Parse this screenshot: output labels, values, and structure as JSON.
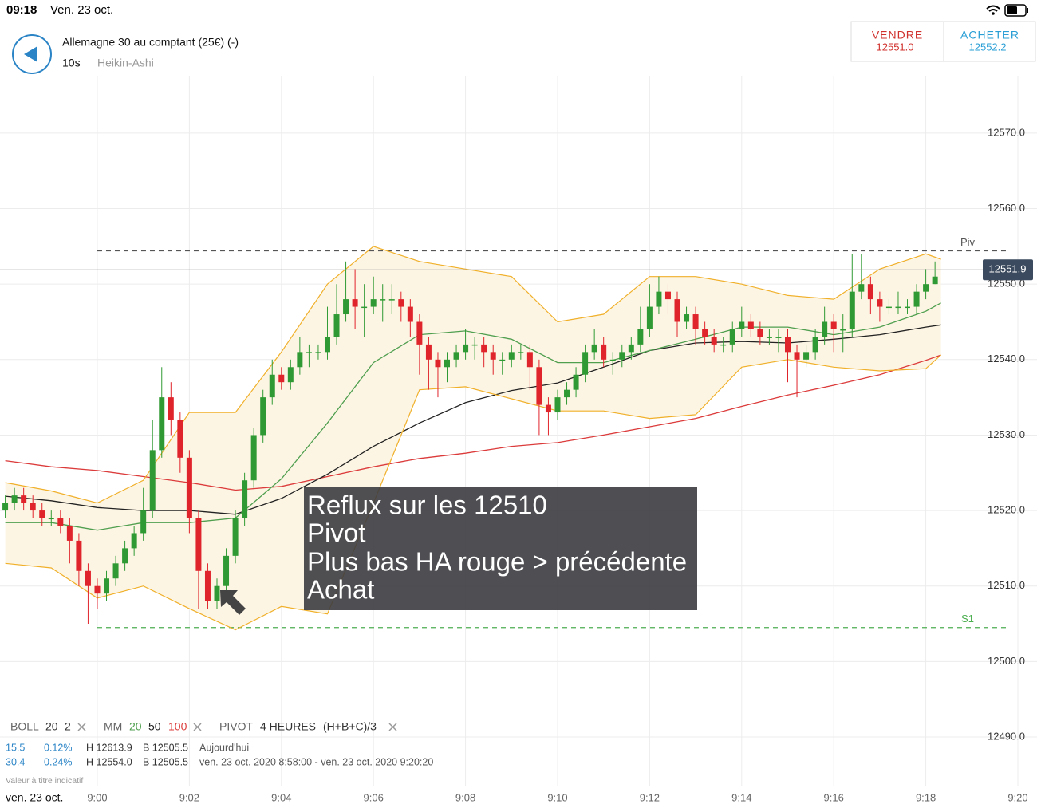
{
  "status_bar": {
    "time": "09:18",
    "date": "Ven. 23 oct."
  },
  "header": {
    "instrument": "Allemagne 30 au comptant (25€) (-)",
    "interval": "10s",
    "chart_style": "Heikin-Ashi"
  },
  "quote": {
    "sell_label": "VENDRE",
    "sell_price": "12551.0",
    "buy_label": "ACHETER",
    "buy_price": "12552.2"
  },
  "chart_data": {
    "type": "candlestick",
    "xlim": [
      -2.114,
      20.416
    ],
    "xticks": [
      {
        "value": 0,
        "label": "9:00"
      },
      {
        "value": 2,
        "label": "9:02"
      },
      {
        "value": 4,
        "label": "9:04"
      },
      {
        "value": 6,
        "label": "9:06"
      },
      {
        "value": 8,
        "label": "9:08"
      },
      {
        "value": 10,
        "label": "9:10"
      },
      {
        "value": 12,
        "label": "9:12"
      },
      {
        "value": 14,
        "label": "9:14"
      },
      {
        "value": 16,
        "label": "9:16"
      },
      {
        "value": 18,
        "label": "9:18"
      },
      {
        "value": 20,
        "label": "9:20"
      }
    ],
    "ylim": [
      12483.55,
      12577.6
    ],
    "yticks": [
      {
        "value": 12490,
        "label": "12490.0"
      },
      {
        "value": 12500,
        "label": "12500.0"
      },
      {
        "value": 12510,
        "label": "12510.0"
      },
      {
        "value": 12520,
        "label": "12520.0"
      },
      {
        "value": 12530,
        "label": "12530.0"
      },
      {
        "value": 12540,
        "label": "12540.0"
      },
      {
        "value": 12550,
        "label": "12550.0"
      },
      {
        "value": 12560,
        "label": "12560.0"
      },
      {
        "value": 12570,
        "label": "12570.0"
      }
    ],
    "grid": true,
    "up_color": "#2f9a33",
    "down_color": "#e0242b",
    "x": [
      -2,
      -1.8,
      -1.6,
      -1.4,
      -1.2,
      -1,
      -0.8,
      -0.6,
      -0.4,
      -0.2,
      0,
      0.2,
      0.4,
      0.6,
      0.8,
      1,
      1.2,
      1.4,
      1.6,
      1.8,
      2,
      2.2,
      2.4,
      2.6,
      2.8,
      3,
      3.2,
      3.4,
      3.6,
      3.8,
      4,
      4.2,
      4.4,
      4.6,
      4.8,
      5,
      5.2,
      5.4,
      5.6,
      5.8,
      6,
      6.2,
      6.4,
      6.6,
      6.8,
      7,
      7.2,
      7.4,
      7.6,
      7.8,
      8,
      8.2,
      8.4,
      8.6,
      8.8,
      9,
      9.2,
      9.4,
      9.6,
      9.8,
      10,
      10.2,
      10.4,
      10.6,
      10.8,
      11,
      11.2,
      11.4,
      11.6,
      11.8,
      12,
      12.2,
      12.4,
      12.6,
      12.8,
      13,
      13.2,
      13.4,
      13.6,
      13.8,
      14,
      14.2,
      14.4,
      14.6,
      14.8,
      15,
      15.2,
      15.4,
      15.6,
      15.8,
      16,
      16.2,
      16.4,
      16.6,
      16.8,
      17,
      17.2,
      17.4,
      17.6,
      17.8,
      18,
      18.2
    ],
    "open": [
      12520,
      12521,
      12522,
      12521,
      12520,
      12519,
      12519,
      12518,
      12516,
      12512,
      12510,
      12509,
      12511,
      12513,
      12515,
      12517,
      12520,
      12528,
      12535,
      12532,
      12527,
      12519,
      12512,
      12508,
      12510,
      12514,
      12519,
      12524,
      12530,
      12535,
      12538,
      12537,
      12539,
      12541,
      12541,
      12541,
      12543,
      12546,
      12548,
      12547,
      12547,
      12548,
      12548,
      12548,
      12547,
      12545,
      12542,
      12540,
      12539,
      12540,
      12541,
      12542,
      12542,
      12541,
      12540,
      12540,
      12541,
      12541,
      12539,
      12534,
      12533,
      12535,
      12536,
      12538,
      12541,
      12542,
      12540,
      12540,
      12541,
      12542,
      12544,
      12547,
      12549,
      12548,
      12545,
      12546,
      12544,
      12543,
      12542,
      12542,
      12544,
      12545,
      12544,
      12543,
      12543,
      12543,
      12541,
      12540,
      12541,
      12543,
      12545,
      12544,
      12544,
      12549,
      12550,
      12548,
      12547,
      12547,
      12547,
      12547,
      12549,
      12550
    ],
    "high": [
      12522,
      12523,
      12523,
      12522,
      12521,
      12520,
      12520,
      12519,
      12517,
      12513,
      12511,
      12512,
      12514,
      12516,
      12518,
      12523,
      12532,
      12539,
      12537,
      12533,
      12528,
      12520,
      12513,
      12511,
      12515,
      12520,
      12525,
      12531,
      12536,
      12540,
      12539,
      12540,
      12543,
      12542,
      12542,
      12547,
      12550,
      12553,
      12552,
      12550,
      12551,
      12550,
      12550,
      12549,
      12548,
      12546,
      12543,
      12541,
      12541,
      12542,
      12544,
      12543,
      12543,
      12542,
      12541,
      12542,
      12542,
      12542,
      12540,
      12535,
      12536,
      12537,
      12539,
      12542,
      12544,
      12543,
      12541,
      12542,
      12543,
      12547,
      12550,
      12551,
      12550,
      12549,
      12547,
      12547,
      12545,
      12544,
      12543,
      12545,
      12547,
      12546,
      12545,
      12544,
      12544,
      12544,
      12542,
      12542,
      12544,
      12547,
      12546,
      12546,
      12554,
      12554,
      12551,
      12549,
      12548,
      12549,
      12548,
      12550,
      12552,
      12553
    ],
    "low": [
      12519,
      12520,
      12520,
      12519,
      12518,
      12518,
      12517,
      12513,
      12510,
      12505,
      12507,
      12508,
      12510,
      12512,
      12514,
      12516,
      12519,
      12527,
      12530,
      12525,
      12517,
      12507,
      12507,
      12507,
      12509,
      12513,
      12518,
      12523,
      12529,
      12534,
      12536,
      12536,
      12538,
      12539,
      12540,
      12540,
      12542,
      12545,
      12544,
      12543,
      12546,
      12545,
      12546,
      12545,
      12543,
      12538,
      12536,
      12535,
      12537,
      12539,
      12540,
      12540,
      12539,
      12538,
      12538,
      12539,
      12540,
      12536,
      12530,
      12530,
      12532,
      12534,
      12535,
      12537,
      12540,
      12539,
      12538,
      12539,
      12540,
      12541,
      12543,
      12546,
      12546,
      12543,
      12544,
      12542,
      12542,
      12541,
      12541,
      12541,
      12543,
      12543,
      12542,
      12542,
      12541,
      12537,
      12535,
      12539,
      12540,
      12542,
      12541,
      12541,
      12543,
      12548,
      12546,
      12545,
      12546,
      12546,
      12546,
      12546,
      12548,
      12550
    ],
    "close": [
      12521,
      12522,
      12521,
      12520,
      12519,
      12519,
      12518,
      12516,
      12512,
      12510,
      12509,
      12511,
      12513,
      12515,
      12517,
      12520,
      12528,
      12535,
      12532,
      12527,
      12519,
      12512,
      12508,
      12510,
      12514,
      12519,
      12524,
      12530,
      12535,
      12538,
      12537,
      12539,
      12541,
      12541,
      12541,
      12543,
      12546,
      12548,
      12547,
      12547,
      12548,
      12548,
      12548,
      12547,
      12545,
      12542,
      12540,
      12539,
      12540,
      12541,
      12542,
      12542,
      12541,
      12540,
      12540,
      12541,
      12541,
      12539,
      12534,
      12533,
      12535,
      12536,
      12538,
      12541,
      12542,
      12540,
      12540,
      12541,
      12542,
      12544,
      12547,
      12549,
      12548,
      12545,
      12546,
      12544,
      12543,
      12542,
      12542,
      12544,
      12545,
      12544,
      12543,
      12543,
      12543,
      12541,
      12540,
      12541,
      12543,
      12545,
      12544,
      12544,
      12549,
      12550,
      12548,
      12547,
      12547,
      12547,
      12547,
      12549,
      12550,
      12551
    ],
    "line_x": [
      -2,
      -1,
      0,
      1,
      2,
      3,
      4,
      5,
      6,
      7,
      8,
      9,
      10,
      11,
      12,
      13,
      14,
      15,
      16,
      17,
      18,
      18.33
    ],
    "bollinger": {
      "color": "#f0b02a",
      "fill": "#fdf5e4",
      "middle_color": "#4f9f4f",
      "upper": [
        12523.7,
        12522.6,
        12521,
        12524,
        12533,
        12533,
        12541,
        12550,
        12555,
        12553,
        12552,
        12551,
        12545,
        12546,
        12551,
        12551,
        12550,
        12548.5,
        12548,
        12552,
        12554,
        12553.3
      ],
      "middle": [
        12518.4,
        12518.4,
        12517.4,
        12518.4,
        12518.4,
        12519,
        12524.2,
        12531.6,
        12539.6,
        12543.3,
        12543.8,
        12542.7,
        12539.6,
        12539.6,
        12541.2,
        12542.7,
        12544.3,
        12544.3,
        12543.3,
        12544.3,
        12546.4,
        12547.5
      ],
      "lower": [
        12513,
        12512.4,
        12508.4,
        12510,
        12507,
        12504.2,
        12507.3,
        12506.3,
        12521,
        12536,
        12536.4,
        12534.8,
        12533.2,
        12533.2,
        12532.2,
        12532.7,
        12539,
        12540,
        12539,
        12538.5,
        12538.8,
        12540.6
      ]
    },
    "moving_averages": [
      {
        "color": "#dc3b3b",
        "values": [
          12526.6,
          12525.8,
          12525.3,
          12524.5,
          12523.7,
          12522.7,
          12523.2,
          12524.5,
          12525.8,
          12526.9,
          12527.6,
          12528.5,
          12529,
          12530,
          12531.1,
          12532.2,
          12533.8,
          12535.3,
          12536.6,
          12538,
          12539.9,
          12540.6
        ]
      },
      {
        "color": "#222222",
        "values": [
          12521.9,
          12521.3,
          12520.4,
          12520,
          12520,
          12519.5,
          12521.6,
          12524.8,
          12528.5,
          12531.6,
          12534.3,
          12535.9,
          12536.9,
          12539,
          12541.2,
          12542.2,
          12542.4,
          12542.2,
          12542.7,
          12543.3,
          12544.3,
          12544.6
        ]
      }
    ],
    "levels": [
      {
        "label": "Piv",
        "value": 12554.4,
        "color": "#555555"
      },
      {
        "label": "S1",
        "value": 12504.5,
        "color": "#4caf50"
      }
    ],
    "last_price": {
      "value": 12551.9,
      "label": "12551.9"
    }
  },
  "annotation": {
    "lines": [
      "Reflux sur les 12510",
      "Pivot",
      "Plus bas HA rouge > précédente",
      "Achat"
    ]
  },
  "indicators": {
    "boll": {
      "name": "BOLL",
      "period": "20",
      "deviation": "2"
    },
    "mm": {
      "name": "MM",
      "p1": "20",
      "p2": "50",
      "p3": "100"
    },
    "pivot": {
      "name": "PIVOT",
      "period": "4 HEURES",
      "formula": "(H+B+C)/3"
    }
  },
  "stats": {
    "rows": [
      [
        "15.5",
        "0.12%",
        "H 12613.9",
        "B 12505.5",
        "Aujourd'hui"
      ],
      [
        "30.4",
        "0.24%",
        "H 12554.0",
        "B 12505.5",
        "ven. 23 oct. 2020 8:58:00 - ven. 23 oct. 2020 9:20:20"
      ]
    ],
    "note": "Valeur à titre indicatif"
  },
  "footer": {
    "date": "ven. 23 oct."
  }
}
